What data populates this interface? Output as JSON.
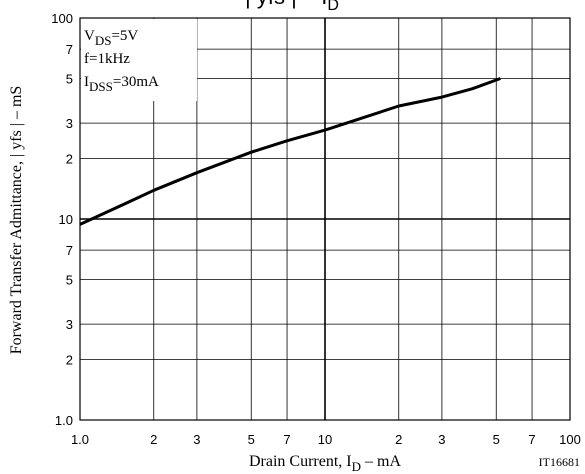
{
  "chart_data": {
    "type": "line",
    "title": {
      "main": "| yfs |  –  I",
      "sub": "D"
    },
    "x_label": {
      "main": "Drain Current, I",
      "sub": "D",
      "rest": "  –  mA"
    },
    "y_label": "Forward Transfer Admittance, | yfs |  –  mS",
    "annotations": [
      {
        "main": "V",
        "sub": "DS",
        "rest": "=5V"
      },
      {
        "main": "f=1kHz",
        "sub": "",
        "rest": ""
      },
      {
        "main": "I",
        "sub": "DSS",
        "rest": "=30mA"
      }
    ],
    "figure_code": "IT16681",
    "xlog": true,
    "ylog": true,
    "grid": true,
    "xlim": [
      1,
      100
    ],
    "ylim": [
      1,
      100
    ],
    "xticks": [
      {
        "value": 1,
        "label": "1.0"
      },
      2,
      3,
      5,
      7,
      10,
      {
        "value": 20,
        "label": "2"
      },
      {
        "value": 30,
        "label": "3"
      },
      {
        "value": 50,
        "label": "5"
      },
      {
        "value": 70,
        "label": "7"
      },
      100
    ],
    "yticks": [
      {
        "value": 1,
        "label": "1.0"
      },
      2,
      3,
      5,
      7,
      10,
      {
        "value": 20,
        "label": "2"
      },
      {
        "value": 30,
        "label": "3"
      },
      {
        "value": 50,
        "label": "5"
      },
      {
        "value": 70,
        "label": "7"
      },
      100
    ],
    "x": [
      1,
      1.5,
      2,
      3,
      5,
      7,
      10,
      15,
      20,
      30,
      40,
      52
    ],
    "series": [
      {
        "name": "|yfs|",
        "color": "#000000",
        "values": [
          9.4,
          11.8,
          13.9,
          17.0,
          21.5,
          24.5,
          27.7,
          32.5,
          36.5,
          40.4,
          44.5,
          50
        ]
      }
    ]
  }
}
